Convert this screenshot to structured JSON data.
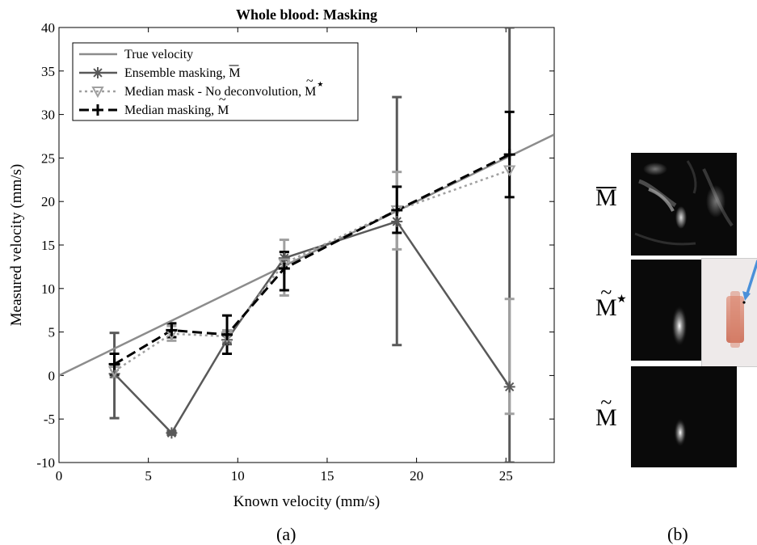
{
  "chart_data": {
    "type": "line",
    "title": "Whole blood: Masking",
    "xlabel": "Known velocity (mm/s)",
    "ylabel": "Measured velocity (mm/s)",
    "xlim": [
      0,
      27.7
    ],
    "ylim": [
      -10,
      40
    ],
    "x_ticks": [
      0,
      5,
      10,
      15,
      20,
      25
    ],
    "y_ticks": [
      -10,
      -5,
      0,
      5,
      10,
      15,
      20,
      25,
      30,
      35,
      40
    ],
    "x_tick_labels": [
      "0",
      "5",
      "10",
      "15",
      "20",
      "25"
    ],
    "y_tick_labels": [
      "-10",
      "-5",
      "0",
      "5",
      "10",
      "15",
      "20",
      "25",
      "30",
      "35",
      "40"
    ],
    "grid": false,
    "legend_position": "top-left",
    "series": [
      {
        "name": "True velocity",
        "legend_main": "True velocity",
        "legend_mark": "",
        "style": "solid",
        "color": "#8c8c8c",
        "marker": "none",
        "x": [
          0,
          27.7
        ],
        "y": [
          0,
          27.7
        ]
      },
      {
        "name": "Ensemble masking, M̄",
        "legend_main": "Ensemble masking, ",
        "legend_mark": "M",
        "legend_accent": "bar",
        "style": "solid",
        "color": "#595959",
        "marker": "asterisk",
        "x": [
          3.1,
          6.3,
          9.4,
          12.6,
          18.9,
          25.2
        ],
        "y": [
          0.2,
          -6.6,
          4.1,
          13.5,
          17.7,
          -1.3
        ],
        "err_low": [
          -4.9,
          -6.8,
          3.6,
          12.8,
          3.5,
          -10
        ],
        "err_high": [
          4.9,
          -6.4,
          4.6,
          14.2,
          32.0,
          40
        ]
      },
      {
        "name": "Median mask - No deconvolution, M̃*",
        "legend_main": "Median mask - No deconvolution, ",
        "legend_mark": "M",
        "legend_accent": "tilde-star",
        "style": "dotted",
        "color": "#a0a0a0",
        "marker": "triangle-down",
        "x": [
          3.1,
          6.3,
          9.4,
          12.6,
          18.9,
          25.2
        ],
        "y": [
          0.5,
          4.8,
          4.5,
          12.9,
          19.0,
          23.6
        ],
        "err_low": [
          -0.2,
          4.0,
          3.8,
          9.2,
          14.5,
          -4.4
        ],
        "err_high": [
          1.2,
          5.7,
          5.2,
          15.6,
          23.4,
          8.8
        ]
      },
      {
        "name": "Median masking, M̃",
        "legend_main": "Median masking, ",
        "legend_mark": "M",
        "legend_accent": "tilde",
        "style": "dashed",
        "color": "#000000",
        "marker": "plus",
        "x": [
          3.1,
          6.3,
          9.4,
          12.6,
          18.9,
          25.2
        ],
        "y": [
          1.3,
          5.2,
          4.7,
          12.3,
          19.0,
          25.4
        ],
        "err_low": [
          0.1,
          4.4,
          2.5,
          9.8,
          16.4,
          20.5
        ],
        "err_high": [
          2.5,
          6.0,
          6.9,
          14.2,
          21.7,
          30.3
        ]
      }
    ]
  },
  "captions": {
    "left": "(a)",
    "right": "(b)"
  },
  "panels": [
    {
      "label": "M",
      "accent": "bar"
    },
    {
      "label": "M",
      "accent": "tilde-star"
    },
    {
      "label": "M",
      "accent": "tilde"
    }
  ],
  "colors": {
    "arrow": "#4a90d9",
    "inset_blob": "#d9826a"
  }
}
